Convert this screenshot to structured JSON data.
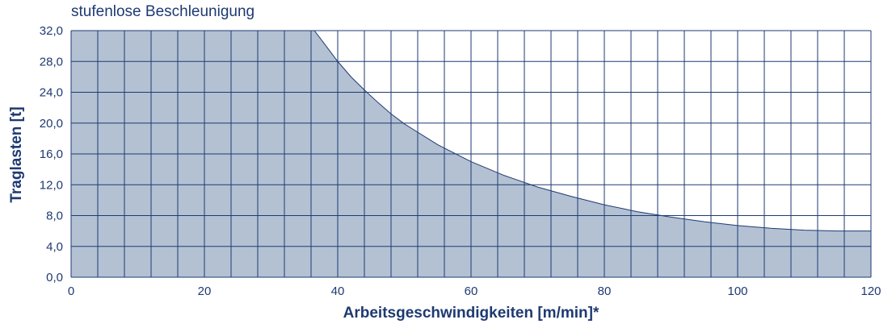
{
  "chart_data": {
    "type": "area",
    "title": "stufenlose Beschleunigung",
    "xlabel": "Arbeitsgeschwindigkeiten [m/min]*",
    "ylabel": "Traglasten [t]",
    "xlim": [
      0,
      120
    ],
    "ylim": [
      0,
      32
    ],
    "x_ticks": [
      "0",
      "20",
      "40",
      "60",
      "80",
      "100",
      "120"
    ],
    "y_ticks": [
      "0,0",
      "4,0",
      "8,0",
      "12,0",
      "16,0",
      "20,0",
      "24,0",
      "28,0",
      "32,0"
    ],
    "x_grid_step": 4,
    "y_grid_step": 4,
    "grid": true,
    "series": [
      {
        "x": [
          0,
          36.5,
          38,
          40,
          42,
          44,
          46,
          48,
          50,
          55,
          60,
          65,
          70,
          75,
          80,
          85,
          90,
          95,
          100,
          105,
          110,
          115,
          120
        ],
        "values": [
          32.0,
          32.0,
          30.3,
          28.0,
          26.0,
          24.3,
          22.7,
          21.2,
          19.9,
          17.2,
          15.0,
          13.2,
          11.7,
          10.5,
          9.4,
          8.5,
          7.8,
          7.2,
          6.7,
          6.35,
          6.1,
          6.0,
          6.0
        ]
      }
    ],
    "colors": {
      "fill": "#b3c1d3",
      "grid": "#1e3a72",
      "text": "#1e3a72"
    }
  }
}
